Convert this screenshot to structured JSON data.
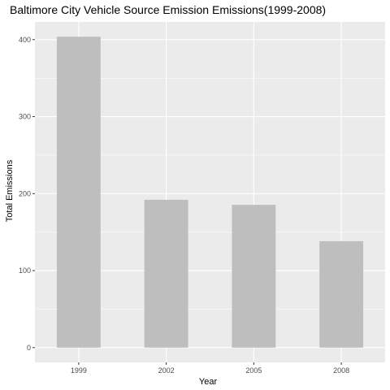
{
  "chart_data": {
    "type": "bar",
    "title": "Baltimore City Vehicle Source Emission Emissions(1999-2008)",
    "xlabel": "Year",
    "ylabel": "Total Emissions",
    "categories": [
      "1999",
      "2002",
      "2005",
      "2008"
    ],
    "values": [
      403.8,
      192.0,
      185.4,
      138.2
    ],
    "ylim": [
      -19.2,
      423
    ],
    "yticks": [
      0,
      100,
      200,
      300,
      400
    ],
    "ytick_labels": [
      "0",
      "100",
      "200",
      "300",
      "400"
    ],
    "grid": true,
    "legend": "none",
    "colors": {
      "bar": "#bebebe",
      "panel": "#ebebeb",
      "grid_major": "#ffffff",
      "tick_text": "#4d4d4d"
    }
  }
}
